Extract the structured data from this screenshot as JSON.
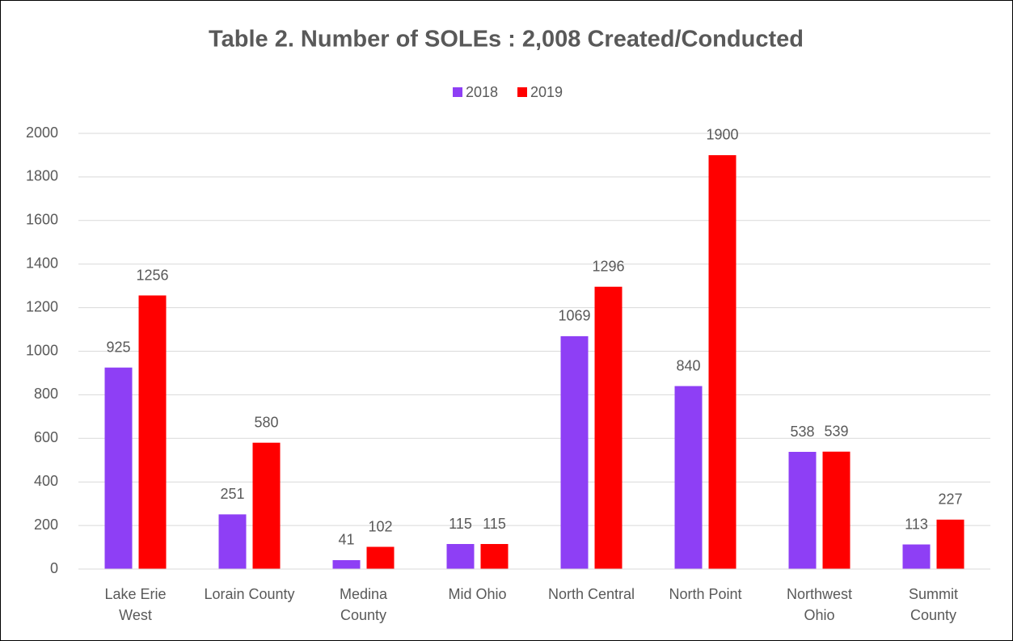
{
  "chart_data": {
    "type": "bar",
    "title": "Table 2. Number of SOLEs : 2,008 Created/Conducted",
    "categories": [
      "Lake Erie\nWest",
      "Lorain County",
      "Medina\nCounty",
      "Mid Ohio",
      "North Central",
      "North Point",
      "Northwest\nOhio",
      "Summit\nCounty"
    ],
    "series": [
      {
        "name": "2018",
        "color": "#8e3ff5",
        "values": [
          925,
          251,
          41,
          115,
          1069,
          840,
          538,
          113
        ]
      },
      {
        "name": "2019",
        "color": "#ff0000",
        "values": [
          1256,
          580,
          102,
          115,
          1296,
          1900,
          539,
          227
        ]
      }
    ],
    "ylim": [
      0,
      2000
    ],
    "yticks": [
      0,
      200,
      400,
      600,
      800,
      1000,
      1200,
      1400,
      1600,
      1800,
      2000
    ],
    "grid": true,
    "legend": "top"
  }
}
